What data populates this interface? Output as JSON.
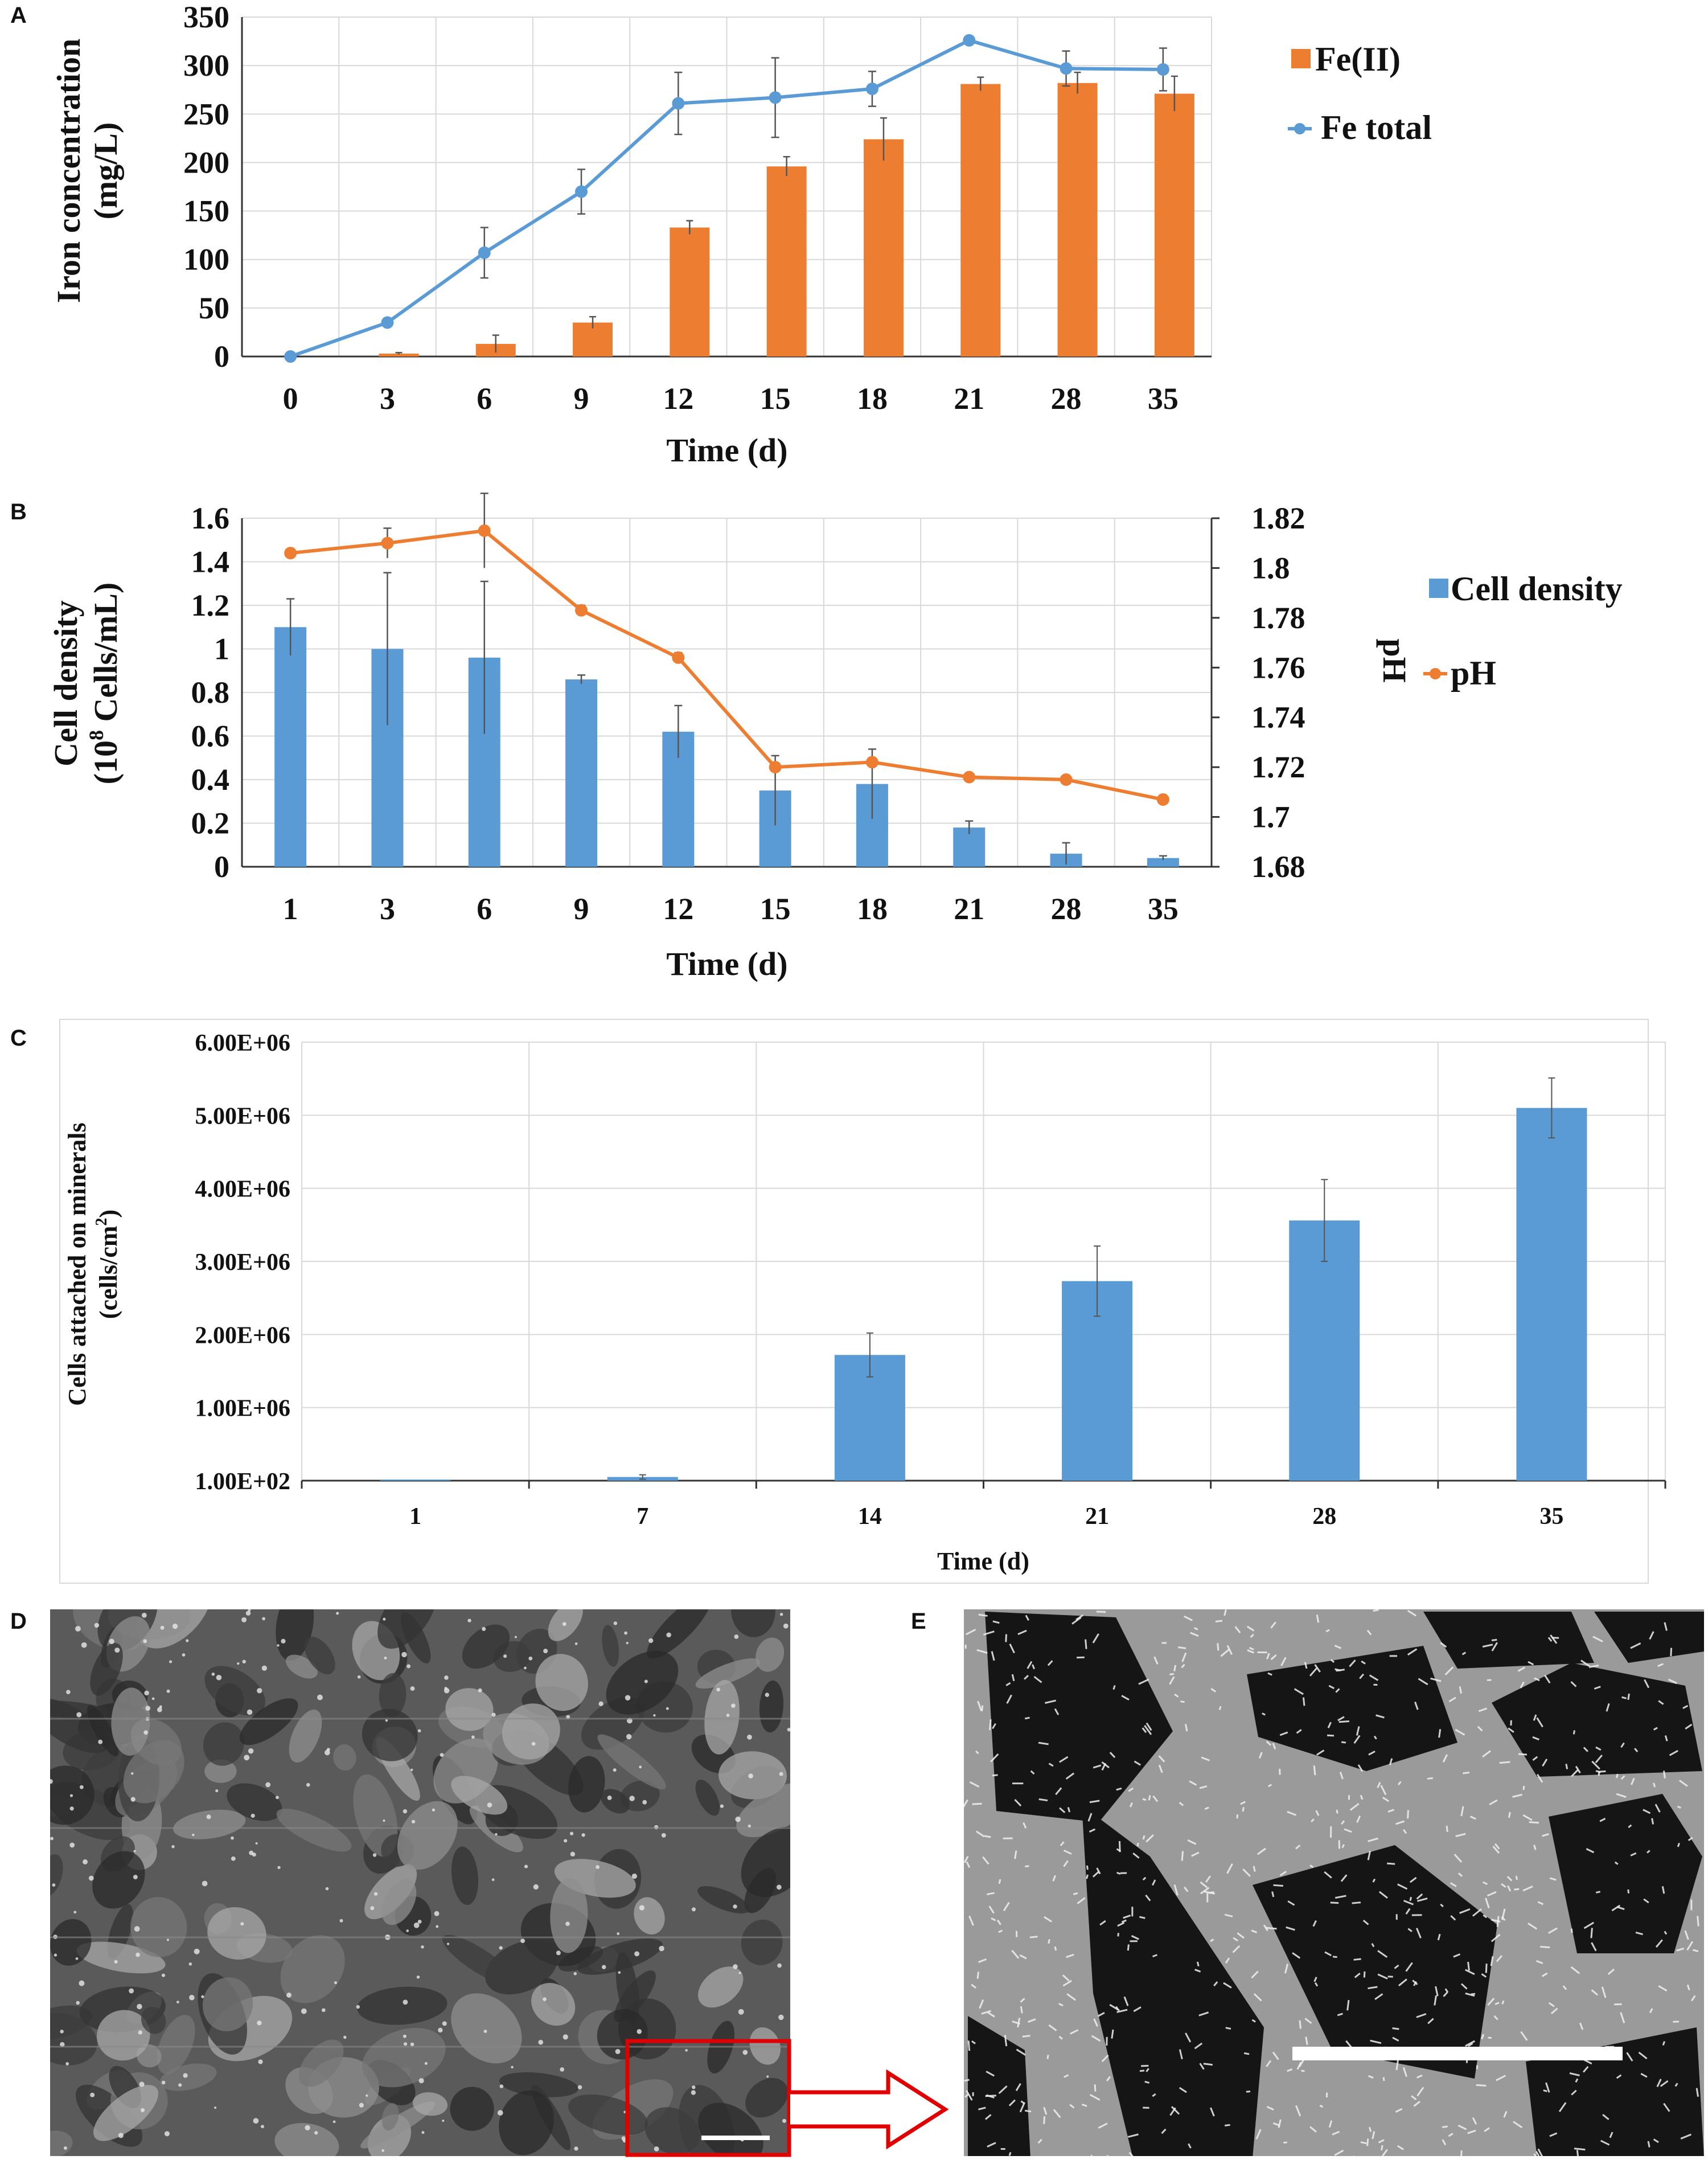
{
  "panels": {
    "A": "A",
    "B": "B",
    "C": "C",
    "D": "D",
    "E": "E"
  },
  "colors": {
    "orange": "#ED7D31",
    "blue": "#5B9BD5",
    "red": "#E00000"
  },
  "chart_data": [
    {
      "id": "A",
      "type": "bar+line",
      "categories": [
        "0",
        "3",
        "6",
        "9",
        "12",
        "15",
        "18",
        "21",
        "28",
        "35"
      ],
      "ylabel_line1": "Iron concentration",
      "ylabel_line2": "(mg/L)",
      "xlabel": "Time (d)",
      "ylim": [
        0,
        350
      ],
      "yticks": [
        0,
        50,
        100,
        150,
        200,
        250,
        300,
        350
      ],
      "grid": true,
      "legend_position": "right",
      "series": [
        {
          "name": "Fe(II)",
          "kind": "bar",
          "color": "#ED7D31",
          "values": [
            0,
            3,
            13,
            35,
            133,
            196,
            224,
            281,
            282,
            271
          ],
          "errors": [
            0,
            1,
            9,
            6,
            7,
            10,
            22,
            7,
            11,
            18
          ]
        },
        {
          "name": "Fe total",
          "kind": "line",
          "color": "#5B9BD5",
          "values": [
            0,
            35,
            107,
            170,
            261,
            267,
            276,
            326,
            297,
            296
          ],
          "errors": [
            0,
            2,
            26,
            23,
            32,
            41,
            18,
            4,
            18,
            22
          ]
        }
      ]
    },
    {
      "id": "B",
      "type": "bar+line",
      "categories": [
        "1",
        "3",
        "6",
        "9",
        "12",
        "15",
        "18",
        "21",
        "28",
        "35"
      ],
      "ylabel_line1": "Cell density",
      "ylabel_line2_pre": "(10",
      "ylabel_line2_sup": "8",
      "ylabel_line2_post": " Cells/mL)",
      "y2label": "pH",
      "xlabel": "Time (d)",
      "ylim": [
        0,
        1.6
      ],
      "yticks": [
        "0",
        "0.2",
        "0.4",
        "0.6",
        "0.8",
        "1",
        "1.2",
        "1.4",
        "1.6"
      ],
      "y2lim": [
        1.68,
        1.82
      ],
      "y2ticks": [
        "1.68",
        "1.7",
        "1.72",
        "1.74",
        "1.76",
        "1.78",
        "1.8",
        "1.82"
      ],
      "grid": true,
      "legend_position": "right",
      "series": [
        {
          "name": "Cell density",
          "kind": "bar",
          "axis": "left",
          "color": "#5B9BD5",
          "values": [
            1.1,
            1.0,
            0.96,
            0.86,
            0.62,
            0.35,
            0.38,
            0.18,
            0.06,
            0.04
          ],
          "errors": [
            0.13,
            0.35,
            0.35,
            0.02,
            0.12,
            0.16,
            0.16,
            0.03,
            0.05,
            0.01
          ]
        },
        {
          "name": "pH",
          "kind": "line",
          "axis": "right",
          "color": "#ED7D31",
          "values": [
            1.806,
            1.81,
            1.815,
            1.783,
            1.764,
            1.72,
            1.722,
            1.716,
            1.715,
            1.707
          ],
          "errors": [
            0,
            0.006,
            0.015,
            0.002,
            0.002,
            0,
            0,
            0,
            0,
            0
          ]
        }
      ]
    },
    {
      "id": "C",
      "type": "bar",
      "categories": [
        "1",
        "7",
        "14",
        "21",
        "28",
        "35"
      ],
      "ylabel_line1": "Cells attached on minerals",
      "ylabel_line2_pre": "(cells/cm",
      "ylabel_line2_sup": "2",
      "ylabel_line2_post": ")",
      "xlabel": "Time (d)",
      "ylim": [
        0,
        6000000
      ],
      "yticks": [
        "1.00E+02",
        "1.00E+06",
        "2.00E+06",
        "3.00E+06",
        "4.00E+06",
        "5.00E+06",
        "6.00E+06"
      ],
      "grid": true,
      "series": [
        {
          "name": "Cells attached",
          "color": "#5B9BD5",
          "values": [
            15000,
            50000,
            1720000,
            2730000,
            3560000,
            5100000
          ],
          "errors": [
            0,
            30000,
            300000,
            480000,
            560000,
            410000
          ]
        }
      ]
    }
  ]
}
